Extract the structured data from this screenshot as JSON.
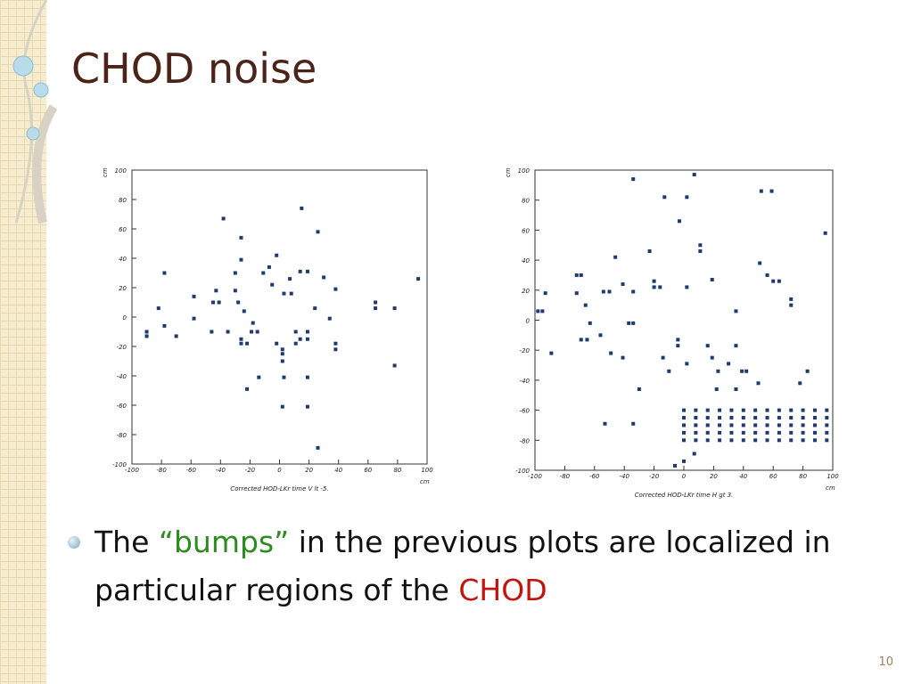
{
  "slide": {
    "title": "CHOD noise",
    "bullet": [
      "The",
      "“bumps”",
      "in the previous plots are localized in particular regions of the",
      "CHOD"
    ],
    "page_number": "10"
  },
  "chart_data": [
    {
      "type": "scatter",
      "title": "Corrected HOD-LKr time V lt -5.",
      "xlabel": "cm",
      "ylabel": "cm",
      "color": "#1f3a6e",
      "xlim": [
        -100,
        100
      ],
      "ylim": [
        -100,
        100
      ],
      "xticks": [
        -100,
        -80,
        -60,
        -40,
        -20,
        0,
        20,
        40,
        60,
        80,
        100
      ],
      "yticks": [
        -100,
        -80,
        -60,
        -40,
        -20,
        0,
        20,
        40,
        60,
        80,
        100
      ],
      "x": [
        -38,
        15,
        26,
        -26,
        -78,
        -26,
        -2,
        -7,
        -11,
        -30,
        14,
        19,
        30,
        7,
        94,
        -58,
        -43,
        -30,
        38,
        -5,
        3,
        8,
        -45,
        -41,
        -28,
        -82,
        24,
        65,
        65,
        78,
        -58,
        -24,
        34,
        -78,
        -90,
        -90,
        -70,
        -46,
        -35,
        -18,
        -19,
        -15,
        -26,
        -26,
        -22,
        -2,
        2,
        2,
        2,
        11,
        14,
        19,
        19,
        11,
        38,
        38,
        -14,
        3,
        19,
        -22,
        78,
        2,
        19,
        26
      ],
      "y": [
        67,
        74,
        58,
        54,
        30,
        39,
        42,
        34,
        30,
        30,
        31,
        31,
        27,
        26,
        26,
        14,
        18,
        18,
        19,
        22,
        16,
        16,
        10,
        10,
        10,
        6,
        6,
        10,
        6,
        6,
        -1,
        4,
        -1,
        -6,
        -10,
        -13,
        -13,
        -10,
        -10,
        -4,
        -10,
        -10,
        -15,
        -18,
        -18,
        -18,
        -22,
        -25,
        -30,
        -10,
        -15,
        -10,
        -15,
        -18,
        -18,
        -22,
        -41,
        -41,
        -41,
        -49,
        -33,
        -61,
        -61,
        -89
      ]
    },
    {
      "type": "scatter",
      "title": "Corrected HOD-LKr time H gt 3.",
      "xlabel": "cm",
      "ylabel": "cm",
      "color": "#1f3a6e",
      "xlim": [
        -100,
        100
      ],
      "ylim": [
        -100,
        100
      ],
      "xticks": [
        -100,
        -80,
        -60,
        -40,
        -20,
        0,
        20,
        40,
        60,
        80,
        100
      ],
      "yticks": [
        -100,
        -80,
        -60,
        -40,
        -20,
        0,
        20,
        40,
        60,
        80,
        100
      ],
      "x": [
        7,
        -34,
        -13,
        2,
        -3,
        52,
        59,
        95,
        11,
        11,
        -23,
        -46,
        -72,
        -69,
        -93,
        -72,
        -54,
        -50,
        -41,
        -34,
        -20,
        -20,
        -16,
        2,
        19,
        51,
        56,
        60,
        64,
        72,
        72,
        35,
        -98,
        -95,
        -66,
        -63,
        -34,
        -37,
        -89,
        -69,
        -65,
        -56,
        -49,
        -41,
        -4,
        -4,
        -14,
        -10,
        2,
        16,
        19,
        23,
        30,
        35,
        39,
        42,
        83,
        -30,
        22,
        35,
        50,
        78,
        -53,
        -34,
        0,
        -6,
        7,
        0,
        8,
        16,
        24,
        32,
        40,
        48,
        56,
        64,
        72,
        80,
        88,
        96,
        0,
        8,
        16,
        24,
        32,
        40,
        48,
        56,
        64,
        72,
        80,
        88,
        96,
        0,
        8,
        16,
        24,
        32,
        40,
        48,
        56,
        64,
        72,
        80,
        88,
        96,
        0,
        8,
        16,
        24,
        32,
        40,
        48,
        56,
        64,
        72,
        80,
        88,
        96,
        0,
        8,
        16,
        24,
        32,
        40,
        48,
        56,
        64,
        72,
        80,
        88,
        96
      ],
      "y": [
        97,
        94,
        82,
        82,
        66,
        86,
        86,
        58,
        50,
        46,
        46,
        42,
        30,
        30,
        18,
        18,
        19,
        19,
        24,
        19,
        26,
        22,
        22,
        22,
        27,
        38,
        30,
        26,
        26,
        14,
        10,
        6,
        6,
        6,
        10,
        -2,
        -2,
        -2,
        -22,
        -13,
        -13,
        -10,
        -22,
        -25,
        -13,
        -17,
        -25,
        -34,
        -29,
        -17,
        -25,
        -34,
        -29,
        -17,
        -34,
        -34,
        -34,
        -46,
        -46,
        -46,
        -42,
        -42,
        -69,
        -69,
        -94,
        -97,
        -89,
        -60,
        -60,
        -60,
        -60,
        -60,
        -60,
        -60,
        -60,
        -60,
        -60,
        -60,
        -60,
        -60,
        -65,
        -65,
        -65,
        -65,
        -65,
        -65,
        -65,
        -65,
        -65,
        -65,
        -65,
        -65,
        -65,
        -70,
        -70,
        -70,
        -70,
        -70,
        -70,
        -70,
        -70,
        -70,
        -70,
        -70,
        -70,
        -70,
        -75,
        -75,
        -75,
        -75,
        -75,
        -75,
        -75,
        -75,
        -75,
        -75,
        -75,
        -75,
        -75,
        -80,
        -80,
        -80,
        -80,
        -80,
        -80,
        -80,
        -80,
        -80,
        -80,
        -80,
        -80,
        -80
      ]
    }
  ]
}
